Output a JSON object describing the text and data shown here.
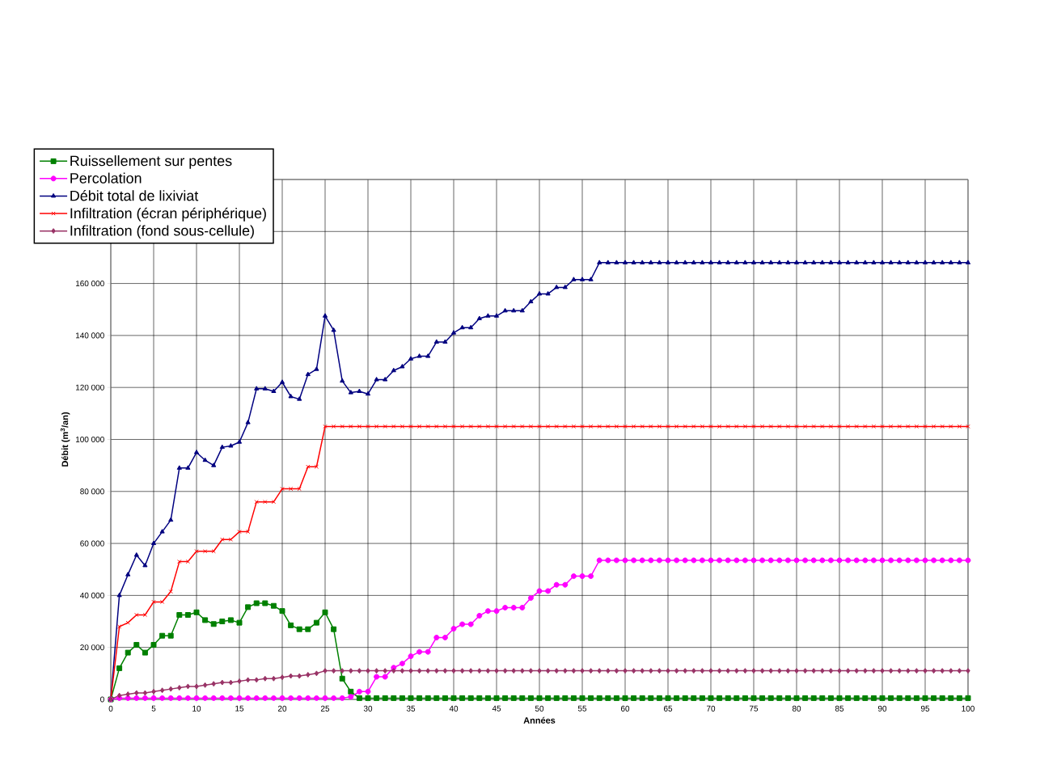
{
  "chart_data": {
    "type": "line",
    "xlabel": "Années",
    "ylabel": "Débit (m$^{3}$/an)",
    "xlim": [
      0,
      100
    ],
    "ylim": [
      0,
      200000
    ],
    "xticks": [
      0,
      5,
      10,
      15,
      20,
      25,
      30,
      35,
      40,
      45,
      50,
      55,
      60,
      65,
      70,
      75,
      80,
      85,
      90,
      95,
      100
    ],
    "yticks": [
      0,
      {
        "value": 20000,
        "label": "20 000"
      },
      {
        "value": 40000,
        "label": "40 000"
      },
      {
        "value": 60000,
        "label": "60 000"
      },
      {
        "value": 80000,
        "label": "80 000"
      },
      {
        "value": 100000,
        "label": "100 000"
      },
      {
        "value": 120000,
        "label": "120 000"
      },
      {
        "value": 140000,
        "label": "140 000"
      },
      {
        "value": 160000,
        "label": "160 000"
      },
      {
        "value": 180000,
        "label": null
      },
      {
        "value": 200000,
        "label": null
      }
    ],
    "grid": true,
    "legend": "top left",
    "x": [
      0,
      1,
      2,
      3,
      4,
      5,
      6,
      7,
      8,
      9,
      10,
      11,
      12,
      13,
      14,
      15,
      16,
      17,
      18,
      19,
      20,
      21,
      22,
      23,
      24,
      25,
      26,
      27,
      28,
      29,
      30,
      31,
      32,
      33,
      34,
      35,
      36,
      37,
      38,
      39,
      40,
      41,
      42,
      43,
      44,
      45,
      46,
      47,
      48,
      49,
      50,
      51,
      52,
      53,
      54,
      55,
      56,
      57,
      58,
      59,
      60,
      61,
      62,
      63,
      64,
      65,
      66,
      67,
      68,
      69,
      70,
      71,
      72,
      73,
      74,
      75,
      76,
      77,
      78,
      79,
      80,
      81,
      82,
      83,
      84,
      85,
      86,
      87,
      88,
      89,
      90,
      91,
      92,
      93,
      94,
      95,
      96,
      97,
      98,
      99,
      100
    ],
    "series": [
      {
        "name": "Ruissellement sur pentes",
        "color": "#008000",
        "marker": "square",
        "values": [
          0,
          12000,
          18000,
          21000,
          18000,
          21000,
          24500,
          24500,
          32500,
          32500,
          33500,
          30500,
          29000,
          30000,
          30500,
          29500,
          35500,
          37000,
          37000,
          36000,
          34000,
          28500,
          27000,
          27000,
          29500,
          33500,
          27000,
          8000,
          3000,
          500,
          500,
          500,
          500,
          500,
          500,
          500,
          500,
          500,
          500,
          500,
          500,
          500,
          500,
          500,
          500,
          500,
          500,
          500,
          500,
          500,
          500,
          500,
          500,
          500,
          500,
          500,
          500,
          500,
          500,
          500,
          500,
          500,
          500,
          500,
          500,
          500,
          500,
          500,
          500,
          500,
          500,
          500,
          500,
          500,
          500,
          500,
          500,
          500,
          500,
          500,
          500,
          500,
          500,
          500,
          500,
          500,
          500,
          500,
          500,
          500,
          500,
          500,
          500,
          500,
          500,
          500,
          500,
          500,
          500,
          500,
          500
        ]
      },
      {
        "name": "Percolation",
        "color": "#ff00ff",
        "marker": "circle",
        "values": [
          0,
          500,
          500,
          500,
          500,
          500,
          500,
          500,
          500,
          500,
          500,
          500,
          500,
          500,
          500,
          500,
          500,
          500,
          500,
          500,
          500,
          500,
          500,
          500,
          500,
          500,
          500,
          500,
          1000,
          3000,
          3000,
          8700,
          8700,
          12200,
          13800,
          16600,
          18300,
          18300,
          23800,
          23800,
          27200,
          28900,
          28900,
          32200,
          34000,
          34000,
          35300,
          35300,
          35300,
          39000,
          41700,
          41700,
          44100,
          44100,
          47400,
          47400,
          47400,
          53500,
          53500,
          53500,
          53500,
          53500,
          53500,
          53500,
          53500,
          53500,
          53500,
          53500,
          53500,
          53500,
          53500,
          53500,
          53500,
          53500,
          53500,
          53500,
          53500,
          53500,
          53500,
          53500,
          53500,
          53500,
          53500,
          53500,
          53500,
          53500,
          53500,
          53500,
          53500,
          53500,
          53500,
          53500,
          53500,
          53500,
          53500,
          53500,
          53500,
          53500,
          53500,
          53500,
          53500
        ]
      },
      {
        "name": "Débit total de lixiviat",
        "color": "#000080",
        "marker": "triangle",
        "values": [
          0,
          40000,
          48000,
          55500,
          51500,
          60000,
          64500,
          69000,
          89000,
          89000,
          95000,
          92000,
          90000,
          97000,
          97500,
          99000,
          106500,
          119500,
          119500,
          118500,
          122000,
          116500,
          115500,
          125000,
          127000,
          147500,
          142000,
          122500,
          118000,
          118500,
          117500,
          123000,
          123000,
          126500,
          128000,
          131000,
          132000,
          132000,
          137500,
          137500,
          141000,
          143000,
          143000,
          146500,
          147500,
          147500,
          149500,
          149500,
          149500,
          153000,
          156000,
          156000,
          158500,
          158500,
          161500,
          161500,
          161500,
          168000,
          168000,
          168000,
          168000,
          168000,
          168000,
          168000,
          168000,
          168000,
          168000,
          168000,
          168000,
          168000,
          168000,
          168000,
          168000,
          168000,
          168000,
          168000,
          168000,
          168000,
          168000,
          168000,
          168000,
          168000,
          168000,
          168000,
          168000,
          168000,
          168000,
          168000,
          168000,
          168000,
          168000,
          168000,
          168000,
          168000,
          168000,
          168000,
          168000,
          168000,
          168000,
          168000,
          168000
        ]
      },
      {
        "name": "Infiltration (écran périphérique)",
        "color": "#ff0000",
        "marker": "cross",
        "values": [
          0,
          28000,
          29500,
          32500,
          32500,
          37500,
          37500,
          41500,
          53000,
          53000,
          57000,
          57000,
          57000,
          61500,
          61500,
          64500,
          64500,
          76000,
          76000,
          76000,
          81000,
          81000,
          81000,
          89500,
          89500,
          105000,
          105000,
          105000,
          105000,
          105000,
          105000,
          105000,
          105000,
          105000,
          105000,
          105000,
          105000,
          105000,
          105000,
          105000,
          105000,
          105000,
          105000,
          105000,
          105000,
          105000,
          105000,
          105000,
          105000,
          105000,
          105000,
          105000,
          105000,
          105000,
          105000,
          105000,
          105000,
          105000,
          105000,
          105000,
          105000,
          105000,
          105000,
          105000,
          105000,
          105000,
          105000,
          105000,
          105000,
          105000,
          105000,
          105000,
          105000,
          105000,
          105000,
          105000,
          105000,
          105000,
          105000,
          105000,
          105000,
          105000,
          105000,
          105000,
          105000,
          105000,
          105000,
          105000,
          105000,
          105000,
          105000,
          105000,
          105000,
          105000,
          105000,
          105000,
          105000,
          105000,
          105000,
          105000,
          105000
        ]
      },
      {
        "name": "Infiltration (fond sous-cellule)",
        "color": "#993366",
        "marker": "diamond",
        "values": [
          0,
          1500,
          2000,
          2500,
          2500,
          3000,
          3500,
          4000,
          4500,
          5000,
          5000,
          5500,
          6000,
          6500,
          6500,
          7000,
          7500,
          7500,
          8000,
          8000,
          8500,
          9000,
          9000,
          9500,
          10000,
          11000,
          11000,
          11000,
          11000,
          11000,
          11000,
          11000,
          11000,
          11000,
          11000,
          11000,
          11000,
          11000,
          11000,
          11000,
          11000,
          11000,
          11000,
          11000,
          11000,
          11000,
          11000,
          11000,
          11000,
          11000,
          11000,
          11000,
          11000,
          11000,
          11000,
          11000,
          11000,
          11000,
          11000,
          11000,
          11000,
          11000,
          11000,
          11000,
          11000,
          11000,
          11000,
          11000,
          11000,
          11000,
          11000,
          11000,
          11000,
          11000,
          11000,
          11000,
          11000,
          11000,
          11000,
          11000,
          11000,
          11000,
          11000,
          11000,
          11000,
          11000,
          11000,
          11000,
          11000,
          11000,
          11000,
          11000,
          11000,
          11000,
          11000,
          11000,
          11000,
          11000,
          11000,
          11000,
          11000
        ]
      }
    ]
  }
}
